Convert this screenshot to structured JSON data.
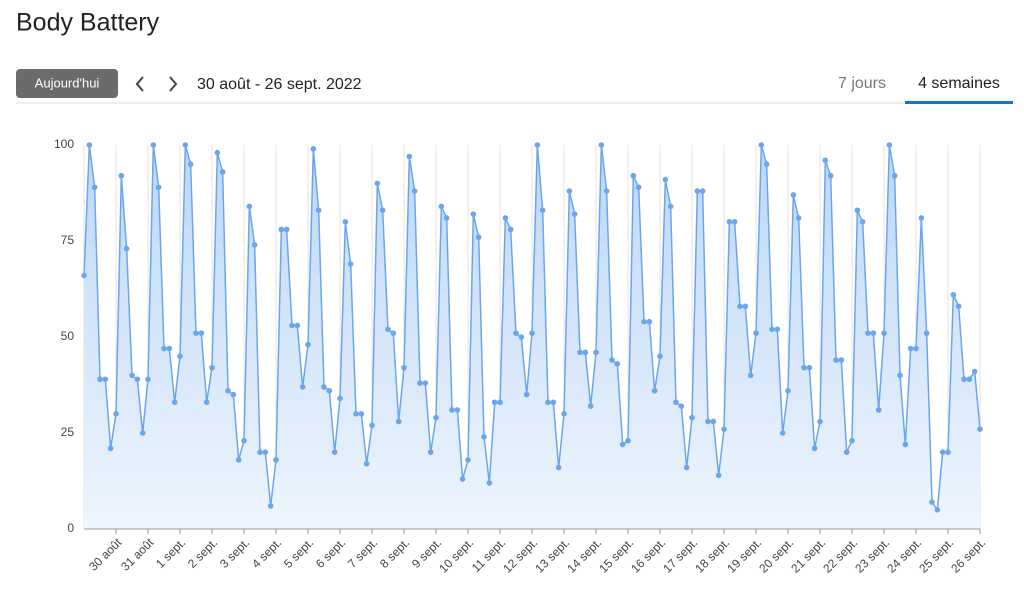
{
  "header": {
    "title": "Body Battery"
  },
  "toolbar": {
    "today_button": "Aujourd'hui",
    "date_range": "30 août - 26 sept. 2022",
    "tabs": [
      "7 jours",
      "4 semaines"
    ]
  },
  "chart_data": {
    "type": "area",
    "color": "#6aa6ee",
    "grid": true,
    "ylim": [
      0,
      100
    ],
    "yticks": [
      0,
      25,
      50,
      75,
      100
    ],
    "categories": [
      null,
      null,
      null,
      null,
      null,
      null,
      "30 août",
      null,
      null,
      null,
      null,
      null,
      "31 août",
      null,
      null,
      null,
      null,
      null,
      "1 sept.",
      null,
      null,
      null,
      null,
      null,
      "2 sept.",
      null,
      null,
      null,
      null,
      null,
      "3 sept.",
      null,
      null,
      null,
      null,
      null,
      "4 sept.",
      null,
      null,
      null,
      null,
      null,
      "5 sept.",
      null,
      null,
      null,
      null,
      null,
      "6 sept.",
      null,
      null,
      null,
      null,
      null,
      "7 sept.",
      null,
      null,
      null,
      null,
      null,
      "8 sept.",
      null,
      null,
      null,
      null,
      null,
      "9 sept.",
      null,
      null,
      null,
      null,
      null,
      "10 sept.",
      null,
      null,
      null,
      null,
      null,
      "11 sept.",
      null,
      null,
      null,
      null,
      null,
      "12 sept.",
      null,
      null,
      null,
      null,
      null,
      "13 sept.",
      null,
      null,
      null,
      null,
      null,
      "14 sept.",
      null,
      null,
      null,
      null,
      null,
      "15 sept.",
      null,
      null,
      null,
      null,
      null,
      "16 sept.",
      null,
      null,
      null,
      null,
      null,
      "17 sept.",
      null,
      null,
      null,
      null,
      null,
      "18 sept.",
      null,
      null,
      null,
      null,
      null,
      "19 sept.",
      null,
      null,
      null,
      null,
      null,
      "20 sept.",
      null,
      null,
      null,
      null,
      null,
      "21 sept.",
      null,
      null,
      null,
      null,
      null,
      "22 sept.",
      null,
      null,
      null,
      null,
      null,
      "23 sept.",
      null,
      null,
      null,
      null,
      null,
      "24 sept.",
      null,
      null,
      null,
      null,
      null,
      "25 sept.",
      null,
      null,
      null,
      null,
      null,
      "26 sept."
    ],
    "values": [
      66,
      100,
      89,
      39,
      39,
      21,
      30,
      92,
      73,
      40,
      39,
      25,
      39,
      100,
      89,
      47,
      47,
      33,
      45,
      100,
      95,
      51,
      51,
      33,
      42,
      98,
      93,
      36,
      35,
      18,
      23,
      84,
      74,
      20,
      20,
      6,
      18,
      78,
      78,
      53,
      53,
      37,
      48,
      99,
      83,
      37,
      36,
      20,
      34,
      80,
      69,
      30,
      30,
      17,
      27,
      90,
      83,
      52,
      51,
      28,
      42,
      97,
      88,
      38,
      38,
      20,
      29,
      84,
      81,
      31,
      31,
      13,
      18,
      82,
      76,
      24,
      12,
      33,
      33,
      81,
      78,
      51,
      50,
      35,
      51,
      100,
      83,
      33,
      33,
      16,
      30,
      88,
      82,
      46,
      46,
      32,
      46,
      100,
      88,
      44,
      43,
      22,
      23,
      92,
      89,
      54,
      54,
      36,
      45,
      91,
      84,
      33,
      32,
      16,
      29,
      88,
      88,
      28,
      28,
      14,
      26,
      80,
      80,
      58,
      58,
      40,
      51,
      100,
      95,
      52,
      52,
      25,
      36,
      87,
      81,
      42,
      42,
      21,
      28,
      96,
      92,
      44,
      44,
      20,
      23,
      83,
      80,
      51,
      51,
      31,
      51,
      100,
      92,
      40,
      22,
      47,
      47,
      81,
      51,
      7,
      5,
      20,
      20,
      61,
      58,
      39,
      39,
      41,
      26
    ]
  }
}
